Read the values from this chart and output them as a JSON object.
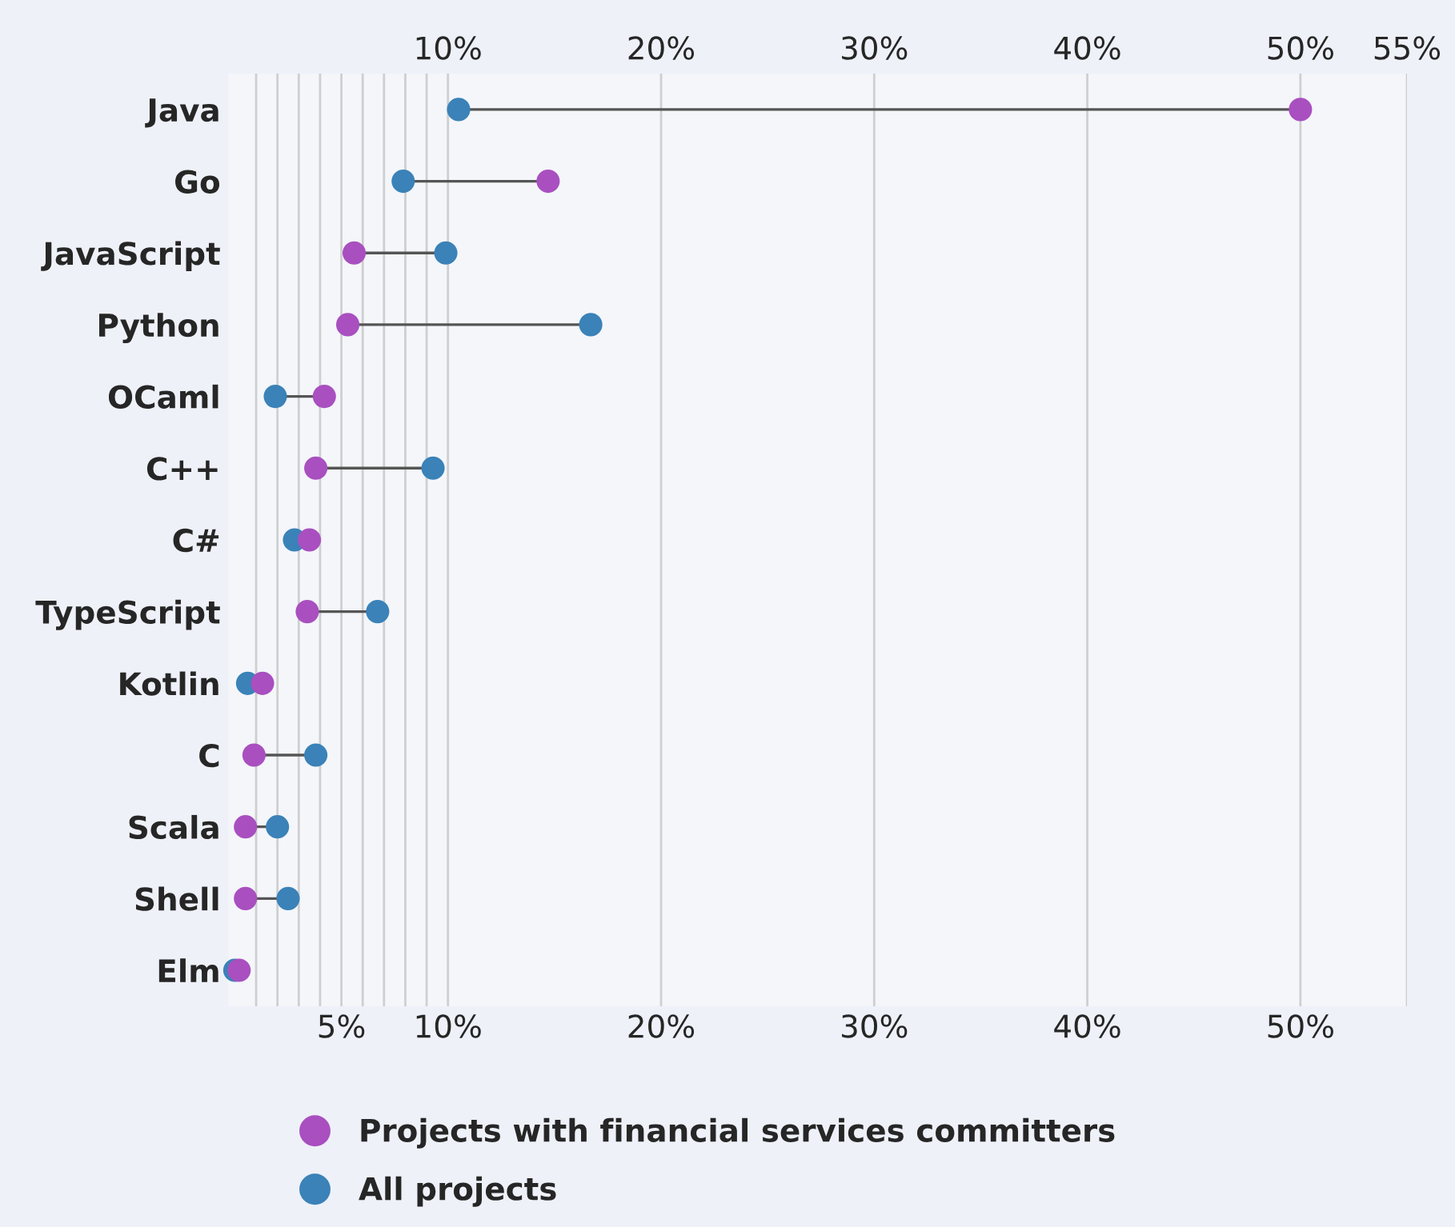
{
  "chart_data": {
    "type": "scatter",
    "orientation": "horizontal",
    "categories": [
      "Java",
      "Go",
      "JavaScript",
      "Python",
      "OCaml",
      "C++",
      "C#",
      "TypeScript",
      "Kotlin",
      "C",
      "Scala",
      "Shell",
      "Elm"
    ],
    "series": [
      {
        "name": "Projects with financial services committers",
        "color": "#a94fc0",
        "values": [
          50,
          14.7,
          5.6,
          5.3,
          4.2,
          3.8,
          3.5,
          3.4,
          1.3,
          0.9,
          0.5,
          0.5,
          0.2
        ]
      },
      {
        "name": "All projects",
        "color": "#3a82b8",
        "values": [
          10.5,
          7.9,
          9.9,
          16.7,
          1.9,
          9.3,
          2.8,
          6.7,
          0.6,
          3.8,
          2.0,
          2.5,
          0
        ]
      }
    ],
    "xlim": [
      -0.3,
      55
    ],
    "xticks": [
      {
        "value": 1,
        "label": null
      },
      {
        "value": 2,
        "label": null
      },
      {
        "value": 3,
        "label": null
      },
      {
        "value": 4,
        "label": null
      },
      {
        "value": 5,
        "label": "5%"
      },
      {
        "value": 6,
        "label": null
      },
      {
        "value": 7,
        "label": null
      },
      {
        "value": 8,
        "label": null
      },
      {
        "value": 9,
        "label": null
      },
      {
        "value": 10,
        "label": "10%"
      },
      {
        "value": 20,
        "label": "20%"
      },
      {
        "value": 30,
        "label": "30%"
      },
      {
        "value": 40,
        "label": "40%"
      },
      {
        "value": 50,
        "label": "50%"
      },
      {
        "value": 55,
        "label": null
      }
    ],
    "x2lim": [
      -0.3,
      55
    ],
    "x2ticks": [
      {
        "value": 10,
        "label": "10%"
      },
      {
        "value": 20,
        "label": "20%"
      },
      {
        "value": 30,
        "label": "30%"
      },
      {
        "value": 40,
        "label": "40%"
      },
      {
        "value": 50,
        "label": "50%"
      },
      {
        "value": 55,
        "label": "55%"
      }
    ],
    "grid": "x",
    "legend": "bottom",
    "marker": "circle"
  }
}
